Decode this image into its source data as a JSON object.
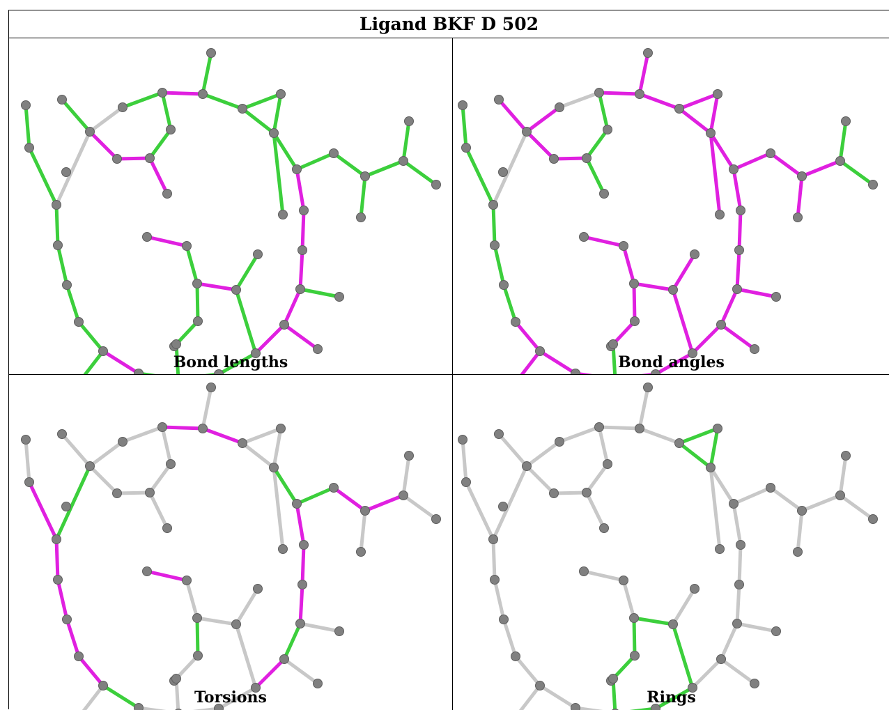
{
  "title": "Ligand BKF D 502",
  "colors": {
    "gray": "#c8c8c8",
    "green": "#3ccf3c",
    "magenta": "#e020e0",
    "atom": "#808080"
  },
  "panels": [
    {
      "caption": "Bond lengths"
    },
    {
      "caption": "Bond angles"
    },
    {
      "caption": "Torsions"
    },
    {
      "caption": "Rings"
    }
  ]
}
